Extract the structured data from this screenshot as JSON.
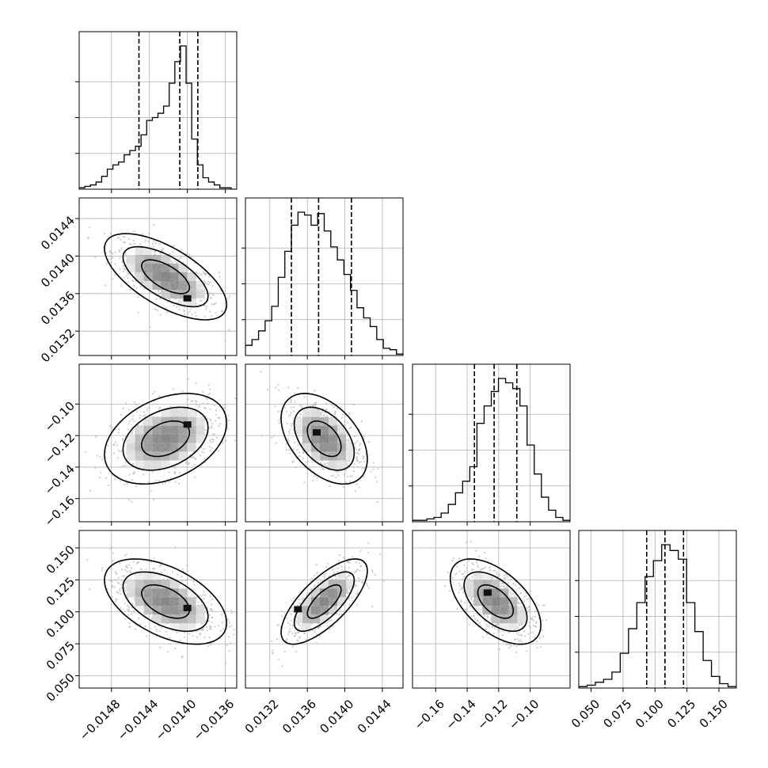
{
  "chart_data": {
    "type": "corner",
    "description": "Corner plot of 4 parameters: 1D histograms on diagonal with 16/50/84 percentile dashed lines; 2D density panels with grayscale bins, scatter points and contours below diagonal",
    "grid": true,
    "parameters": [
      {
        "ticks": [
          -0.0148,
          -0.0144,
          -0.014,
          -0.0136
        ],
        "tick_labels": [
          "−0.0148",
          "−0.0144",
          "−0.0140",
          "−0.0136"
        ],
        "range": [
          -0.01514,
          -0.01348
        ]
      },
      {
        "ticks": [
          0.0132,
          0.0136,
          0.014,
          0.0144
        ],
        "tick_labels": [
          "0.0132",
          "0.0136",
          "0.0140",
          "0.0144"
        ],
        "range": [
          0.01294,
          0.01462
        ]
      },
      {
        "ticks": [
          -0.16,
          -0.14,
          -0.12,
          -0.1
        ],
        "tick_labels": [
          "−0.16",
          "−0.14",
          "−0.12",
          "−0.10"
        ],
        "range": [
          -0.1747,
          -0.0747
        ]
      },
      {
        "ticks": [
          0.05,
          0.075,
          0.1,
          0.125,
          0.15
        ],
        "tick_labels": [
          "0.050",
          "0.075",
          "0.100",
          "0.125",
          "0.150"
        ],
        "range": [
          0.0404,
          0.1636
        ]
      }
    ],
    "diagonal": [
      {
        "quantiles": [
          -0.01451,
          -0.01408,
          -0.01389
        ],
        "hist": [
          1,
          2,
          3,
          5,
          9,
          14,
          17,
          19,
          24,
          27,
          30,
          38,
          48,
          50,
          53,
          58,
          74,
          89,
          100,
          74,
          35,
          17,
          8,
          5,
          3,
          1,
          1,
          0
        ]
      },
      {
        "quantiles": [
          0.01343,
          0.01372,
          0.01407
        ],
        "hist": [
          7,
          11,
          17,
          24,
          34,
          54,
          72,
          90,
          99,
          97,
          90,
          98,
          86,
          75,
          66,
          56,
          45,
          33,
          26,
          20,
          11,
          5,
          4,
          1
        ]
      },
      {
        "quantiles": [
          -0.1354,
          -0.1229,
          -0.1085
        ],
        "hist": [
          1,
          1,
          2,
          3,
          6,
          12,
          20,
          28,
          38,
          68,
          80,
          90,
          99,
          96,
          92,
          80,
          53,
          33,
          17,
          8,
          3,
          1
        ]
      },
      {
        "quantiles": [
          0.0935,
          0.1078,
          0.1223
        ],
        "hist": [
          1,
          2,
          4,
          6,
          11,
          24,
          41,
          59,
          77,
          88,
          99,
          95,
          89,
          59,
          39,
          19,
          8,
          3,
          1
        ]
      }
    ],
    "pairs": [
      {
        "x": 0,
        "y": 1,
        "mean": [
          -0.01423,
          0.01378
        ],
        "std": [
          0.00028,
          0.0002
        ],
        "rho": -0.65,
        "peak": [
          -0.014,
          0.01355
        ]
      },
      {
        "x": 0,
        "y": 2,
        "mean": [
          -0.01423,
          -0.122
        ],
        "std": [
          0.00028,
          0.0125
        ],
        "rho": 0.35,
        "peak": [
          -0.014,
          -0.113
        ]
      },
      {
        "x": 1,
        "y": 2,
        "mean": [
          0.01378,
          -0.122
        ],
        "std": [
          0.0002,
          0.0125
        ],
        "rho": -0.45,
        "peak": [
          0.0137,
          -0.118
        ]
      },
      {
        "x": 0,
        "y": 3,
        "mean": [
          -0.01423,
          0.108
        ],
        "std": [
          0.00028,
          0.0145
        ],
        "rho": -0.5,
        "peak": [
          -0.014,
          0.103
        ]
      },
      {
        "x": 1,
        "y": 3,
        "mean": [
          0.01378,
          0.108
        ],
        "std": [
          0.0002,
          0.0145
        ],
        "rho": 0.72,
        "peak": [
          0.0135,
          0.102
        ]
      },
      {
        "x": 2,
        "y": 3,
        "mean": [
          -0.122,
          0.108
        ],
        "std": [
          0.0125,
          0.0145
        ],
        "rho": -0.55,
        "peak": [
          -0.127,
          0.115
        ]
      }
    ]
  }
}
